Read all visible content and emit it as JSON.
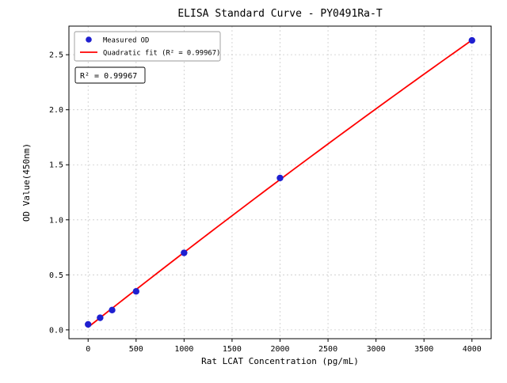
{
  "figure": {
    "background": "#ffffff",
    "border_color": "#000000",
    "grid_color": "#c9c9c9"
  },
  "chart_data": {
    "type": "scatter",
    "title": "ELISA Standard Curve - PY0491Ra-T",
    "xlabel": "Rat LCAT Concentration (pg/mL)",
    "ylabel": "OD Value(450nm)",
    "xlim": [
      -200,
      4200
    ],
    "ylim": [
      -0.08,
      2.76
    ],
    "xticks": [
      0,
      500,
      1000,
      1500,
      2000,
      2500,
      3000,
      3500,
      4000
    ],
    "xtick_labels": [
      "0",
      "500",
      "1000",
      "1500",
      "2000",
      "2500",
      "3000",
      "3500",
      "4000"
    ],
    "yticks": [
      0.0,
      0.5,
      1.0,
      1.5,
      2.0,
      2.5
    ],
    "ytick_labels": [
      "0.0",
      "0.5",
      "1.0",
      "1.5",
      "2.0",
      "2.5"
    ],
    "grid": true,
    "legend_position": "upper left",
    "series": [
      {
        "name": "Measured OD",
        "kind": "scatter",
        "color": "#1f1fd0",
        "x": [
          0,
          125,
          250,
          500,
          1000,
          2000,
          4000
        ],
        "y": [
          0.05,
          0.11,
          0.18,
          0.35,
          0.7,
          1.38,
          2.63
        ]
      },
      {
        "name": "Quadratic fit (R² = 0.99967)",
        "kind": "quadratic-fit-line",
        "color": "#ff0000",
        "fit_of_series": 0
      }
    ],
    "annotation": {
      "text": "R² = 0.99967"
    }
  }
}
